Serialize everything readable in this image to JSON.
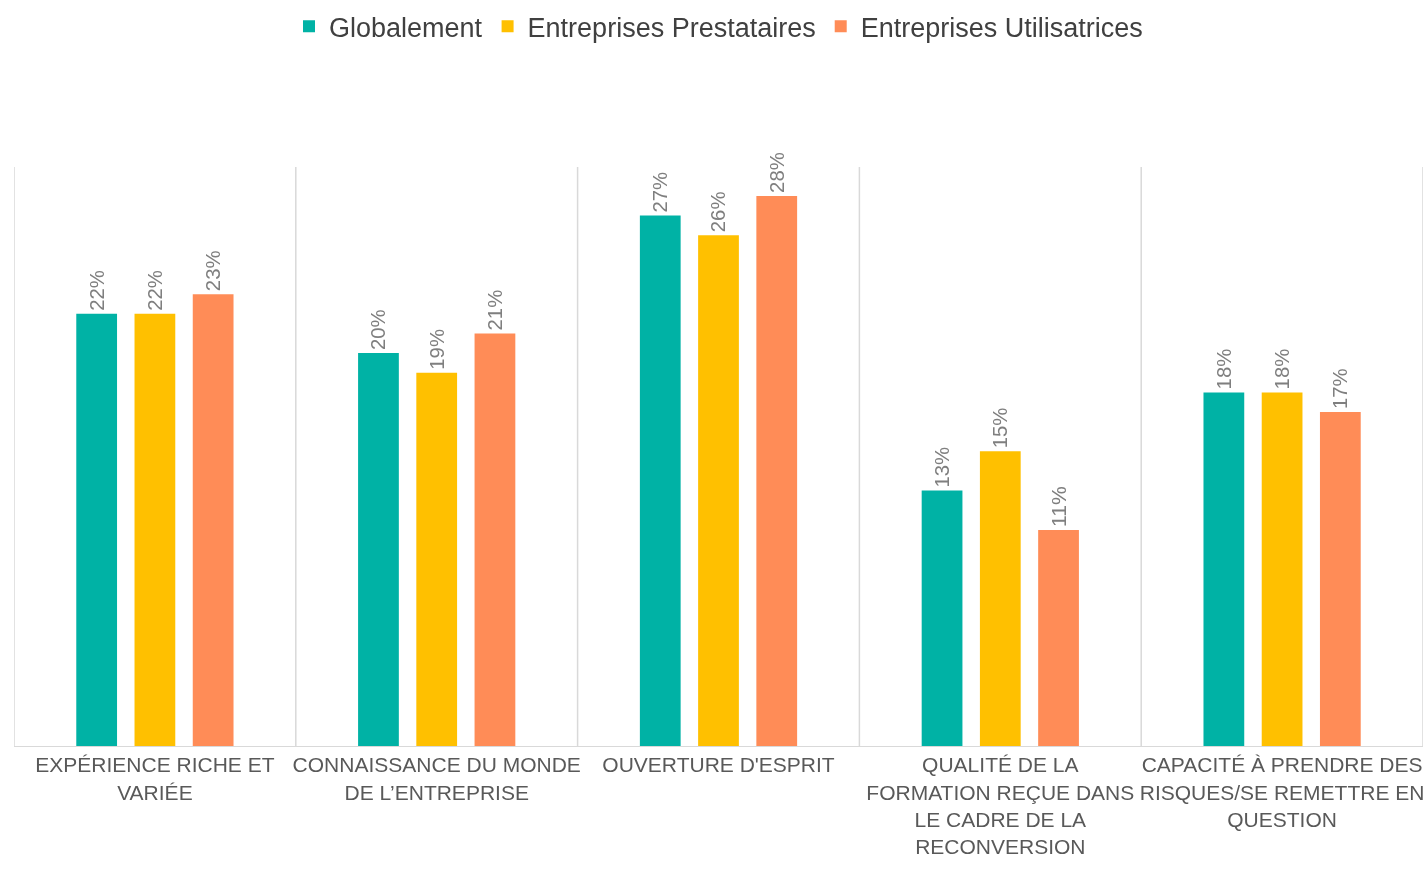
{
  "chart_data": {
    "type": "bar",
    "categories": [
      "EXPÉRIENCE RICHE ET VARIÉE",
      "CONNAISSANCE DU MONDE DE L’ENTREPRISE",
      "OUVERTURE D'ESPRIT",
      "QUALITÉ DE LA FORMATION REÇUE DANS LE CADRE DE LA RECONVERSION",
      "CAPACITÉ À PRENDRE DES RISQUES/SE REMETTRE EN QUESTION"
    ],
    "series": [
      {
        "name": "Globalement",
        "color": "#00b2a5",
        "values": [
          22,
          20,
          27,
          13,
          18
        ],
        "value_labels": [
          "22%",
          "20%",
          "27%",
          "13%",
          "18%"
        ]
      },
      {
        "name": "Entreprises Prestataires",
        "color": "#ffc000",
        "values": [
          22,
          19,
          26,
          15,
          18
        ],
        "value_labels": [
          "22%",
          "19%",
          "26%",
          "15%",
          "18%"
        ]
      },
      {
        "name": "Entreprises Utilisatrices",
        "color": "#ff8c57",
        "values": [
          23,
          21,
          28,
          11,
          17
        ],
        "value_labels": [
          "23%",
          "21%",
          "28%",
          "11%",
          "17%"
        ]
      }
    ],
    "grid": "x",
    "legend": "top",
    "tick_labels": "x"
  }
}
